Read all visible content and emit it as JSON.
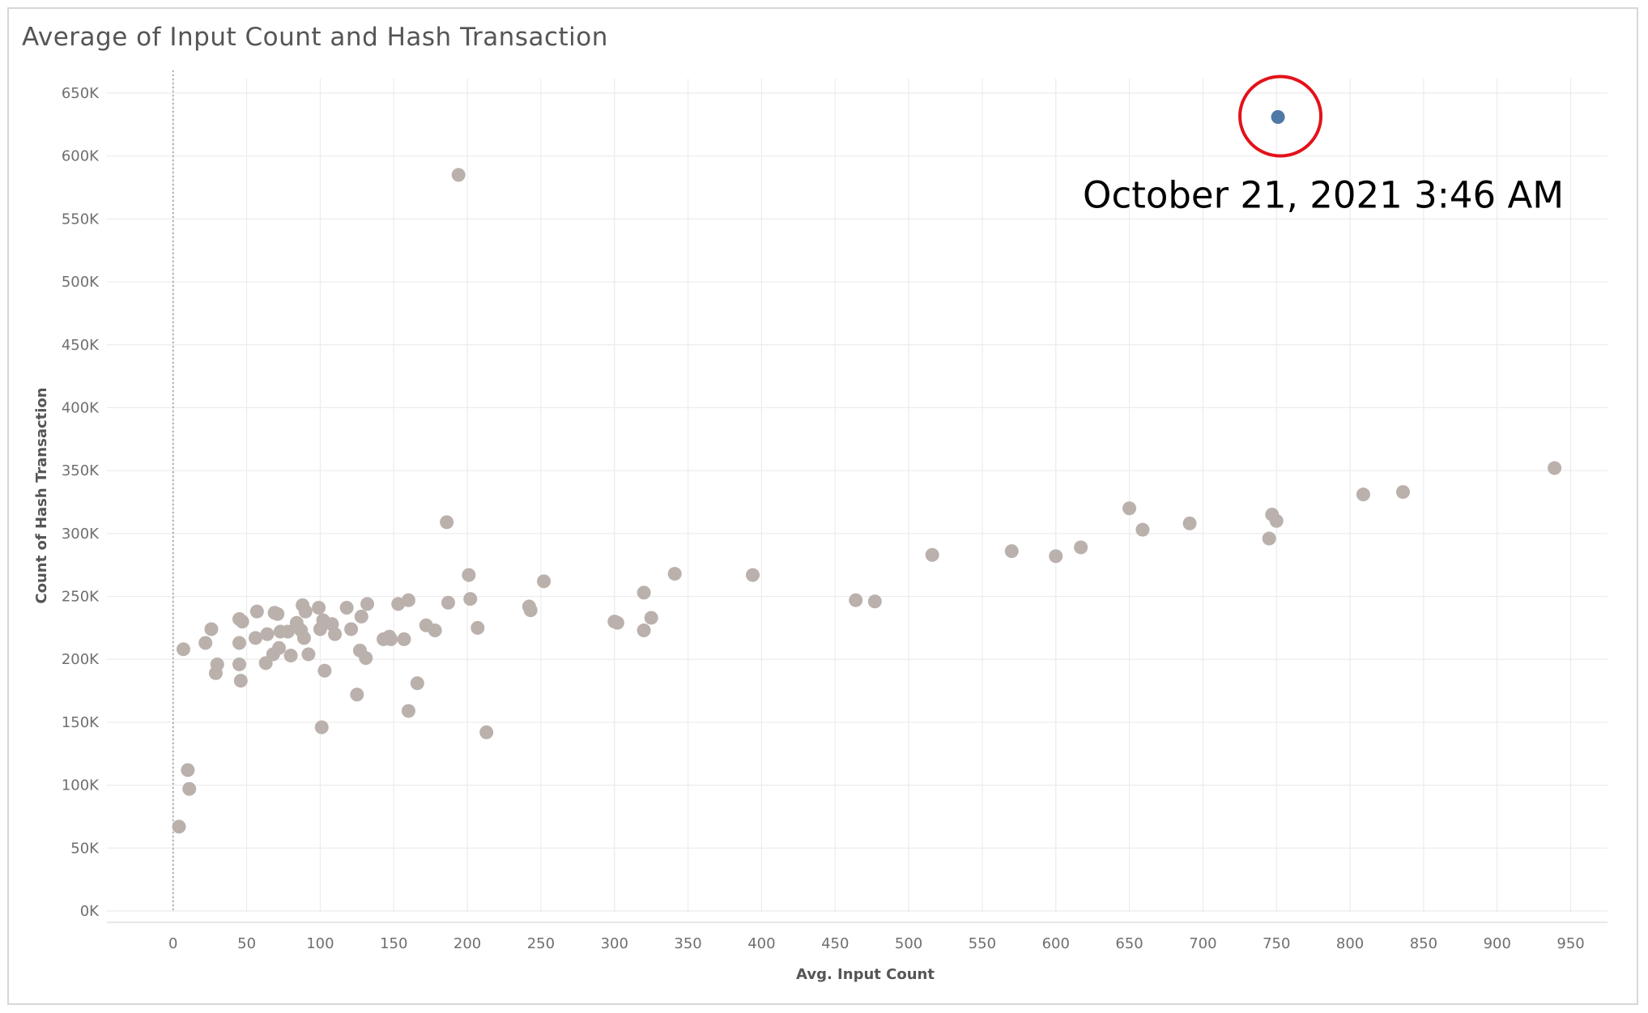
{
  "chart_data": {
    "type": "scatter",
    "title": "Average of Input Count and Hash Transaction",
    "xlabel": "Avg. Input Count",
    "ylabel": "Count of Hash Transaction",
    "xlim": [
      -45,
      975
    ],
    "ylim": [
      0,
      650000
    ],
    "xticks": [
      0,
      50,
      100,
      150,
      200,
      250,
      300,
      350,
      400,
      450,
      500,
      550,
      600,
      650,
      700,
      750,
      800,
      850,
      900,
      950
    ],
    "yticks": [
      {
        "value": 0,
        "label": "0K"
      },
      {
        "value": 50000,
        "label": "50K"
      },
      {
        "value": 100000,
        "label": "100K"
      },
      {
        "value": 150000,
        "label": "150K"
      },
      {
        "value": 200000,
        "label": "200K"
      },
      {
        "value": 250000,
        "label": "250K"
      },
      {
        "value": 300000,
        "label": "300K"
      },
      {
        "value": 350000,
        "label": "350K"
      },
      {
        "value": 400000,
        "label": "400K"
      },
      {
        "value": 450000,
        "label": "450K"
      },
      {
        "value": 500000,
        "label": "500K"
      },
      {
        "value": 550000,
        "label": "550K"
      },
      {
        "value": 600000,
        "label": "600K"
      },
      {
        "value": 650000,
        "label": "650K"
      }
    ],
    "grid": true,
    "reference_line_x": 0,
    "point_color": "#bab0ac",
    "highlight_color": "#4e79a7",
    "annotation_color": "#e3121a",
    "points": [
      [
        4,
        67000
      ],
      [
        7,
        208000
      ],
      [
        10,
        112000
      ],
      [
        11,
        97000
      ],
      [
        22,
        213000
      ],
      [
        26,
        224000
      ],
      [
        29,
        189000
      ],
      [
        30,
        196000
      ],
      [
        45,
        213000
      ],
      [
        45,
        196000
      ],
      [
        45,
        232000
      ],
      [
        46,
        183000
      ],
      [
        47,
        230000
      ],
      [
        56,
        217000
      ],
      [
        57,
        238000
      ],
      [
        63,
        197000
      ],
      [
        64,
        220000
      ],
      [
        68,
        204000
      ],
      [
        69,
        237000
      ],
      [
        71,
        236000
      ],
      [
        72,
        209000
      ],
      [
        73,
        222000
      ],
      [
        78,
        222000
      ],
      [
        80,
        203000
      ],
      [
        84,
        229000
      ],
      [
        87,
        223000
      ],
      [
        88,
        243000
      ],
      [
        89,
        217000
      ],
      [
        90,
        238000
      ],
      [
        92,
        204000
      ],
      [
        99,
        241000
      ],
      [
        100,
        224000
      ],
      [
        101,
        146000
      ],
      [
        102,
        231000
      ],
      [
        103,
        191000
      ],
      [
        108,
        228000
      ],
      [
        110,
        220000
      ],
      [
        118,
        241000
      ],
      [
        121,
        224000
      ],
      [
        125,
        172000
      ],
      [
        127,
        207000
      ],
      [
        128,
        234000
      ],
      [
        131,
        201000
      ],
      [
        132,
        244000
      ],
      [
        143,
        216000
      ],
      [
        147,
        218000
      ],
      [
        148,
        216000
      ],
      [
        153,
        244000
      ],
      [
        157,
        216000
      ],
      [
        160,
        159000
      ],
      [
        160,
        247000
      ],
      [
        166,
        181000
      ],
      [
        172,
        227000
      ],
      [
        178,
        223000
      ],
      [
        186,
        309000
      ],
      [
        187,
        245000
      ],
      [
        194,
        585000
      ],
      [
        201,
        267000
      ],
      [
        202,
        248000
      ],
      [
        207,
        225000
      ],
      [
        213,
        142000
      ],
      [
        242,
        242000
      ],
      [
        243,
        239000
      ],
      [
        252,
        262000
      ],
      [
        300,
        230000
      ],
      [
        302,
        229000
      ],
      [
        320,
        253000
      ],
      [
        320,
        223000
      ],
      [
        325,
        233000
      ],
      [
        341,
        268000
      ],
      [
        394,
        267000
      ],
      [
        464,
        247000
      ],
      [
        477,
        246000
      ],
      [
        516,
        283000
      ],
      [
        570,
        286000
      ],
      [
        600,
        282000
      ],
      [
        617,
        289000
      ],
      [
        650,
        320000
      ],
      [
        659,
        303000
      ],
      [
        691,
        308000
      ],
      [
        745,
        296000
      ],
      [
        747,
        315000
      ],
      [
        750,
        310000
      ],
      [
        809,
        331000
      ],
      [
        836,
        333000
      ],
      [
        939,
        352000
      ]
    ],
    "highlight_points": [
      [
        751,
        631000
      ]
    ],
    "annotation": "October 21, 2021 3:46 AM"
  }
}
